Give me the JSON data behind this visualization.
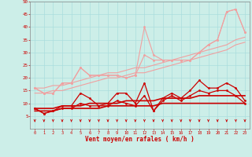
{
  "x": [
    0,
    1,
    2,
    3,
    4,
    5,
    6,
    7,
    8,
    9,
    10,
    11,
    12,
    13,
    14,
    15,
    16,
    17,
    18,
    19,
    20,
    21,
    22,
    23
  ],
  "pink_zigzag1": [
    16,
    14,
    14,
    18,
    18,
    24,
    21,
    21,
    21,
    21,
    20,
    21,
    40,
    29,
    27,
    27,
    27,
    27,
    30,
    33,
    35,
    46,
    47,
    38
  ],
  "pink_zigzag2": [
    16,
    14,
    14,
    18,
    18,
    24,
    21,
    21,
    21,
    21,
    20,
    21,
    29,
    27,
    27,
    27,
    27,
    27,
    30,
    33,
    35,
    46,
    47,
    38
  ],
  "pink_linear1": [
    16,
    16,
    17,
    17,
    18,
    19,
    20,
    21,
    22,
    22,
    23,
    24,
    24,
    25,
    26,
    27,
    28,
    29,
    30,
    31,
    32,
    33,
    35,
    36
  ],
  "pink_linear2": [
    14,
    14,
    15,
    15,
    16,
    17,
    18,
    19,
    20,
    20,
    21,
    22,
    22,
    23,
    24,
    25,
    26,
    27,
    28,
    29,
    30,
    31,
    33,
    34
  ],
  "red_zigzag1": [
    8,
    6,
    7,
    9,
    9,
    14,
    12,
    9,
    10,
    14,
    14,
    10,
    18,
    7,
    12,
    14,
    12,
    15,
    19,
    16,
    16,
    18,
    16,
    11
  ],
  "red_zigzag2": [
    8,
    6,
    7,
    8,
    8,
    10,
    9,
    9,
    9,
    11,
    10,
    9,
    13,
    7,
    11,
    13,
    11,
    13,
    15,
    14,
    15,
    15,
    13,
    10
  ],
  "red_linear1": [
    8,
    8,
    8,
    9,
    9,
    9,
    10,
    10,
    10,
    10,
    11,
    11,
    11,
    11,
    12,
    12,
    12,
    12,
    13,
    13,
    13,
    13,
    13,
    13
  ],
  "red_linear2": [
    7,
    7,
    7,
    8,
    8,
    8,
    8,
    8,
    9,
    9,
    9,
    9,
    9,
    9,
    10,
    10,
    10,
    10,
    10,
    10,
    10,
    10,
    10,
    10
  ],
  "ylim": [
    0,
    50
  ],
  "xlim": [
    -0.5,
    23.5
  ],
  "xlabel": "Vent moyen/en rafales ( km/h )",
  "bg_color": "#cceee8",
  "light_pink": "#f0a0a0",
  "dark_red": "#cc0000",
  "med_red": "#dd4444",
  "grid_color": "#aadddd"
}
